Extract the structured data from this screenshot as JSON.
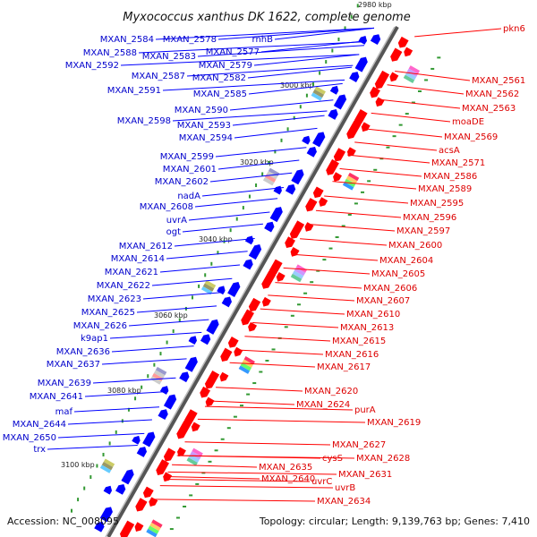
{
  "title": "Myxococcus xanthus DK 1622, complete genome",
  "footer": {
    "accession": "Accession: NC_008095",
    "summary": "Topology: circular; Length: 9,139,763 bp; Genes: 7,410"
  },
  "ticks": [
    "2980 kbp",
    "3000 kbp",
    "3020 kbp",
    "3040 kbp",
    "3060 kbp",
    "3080 kbp",
    "3100 kbp"
  ],
  "left_genes": [
    "MXAN_2584",
    "MXAN_2578",
    "rnhB",
    "MXAN_2588",
    "MXAN_2583",
    "MXAN_2577",
    "MXAN_2592",
    "MXAN_2579",
    "MXAN_2587",
    "MXAN_2582",
    "MXAN_2591",
    "MXAN_2585",
    "MXAN_2590",
    "MXAN_2598",
    "MXAN_2593",
    "MXAN_2594",
    "MXAN_2599",
    "MXAN_2601",
    "MXAN_2602",
    "nadA",
    "MXAN_2608",
    "uvrA",
    "ogt",
    "MXAN_2612",
    "MXAN_2614",
    "MXAN_2621",
    "MXAN_2622",
    "MXAN_2623",
    "MXAN_2625",
    "MXAN_2626",
    "k9ap1",
    "MXAN_2636",
    "MXAN_2637",
    "MXAN_2639",
    "MXAN_2641",
    "maf",
    "MXAN_2644",
    "MXAN_2650",
    "trx"
  ],
  "right_genes": [
    "pkn6",
    "MXAN_2561",
    "MXAN_2562",
    "MXAN_2563",
    "moaDE",
    "MXAN_2569",
    "acsA",
    "MXAN_2571",
    "MXAN_2586",
    "MXAN_2589",
    "MXAN_2595",
    "MXAN_2596",
    "MXAN_2597",
    "MXAN_2600",
    "MXAN_2604",
    "MXAN_2605",
    "MXAN_2606",
    "MXAN_2607",
    "MXAN_2610",
    "MXAN_2613",
    "MXAN_2615",
    "MXAN_2616",
    "MXAN_2617",
    "MXAN_2620",
    "MXAN_2624",
    "purA",
    "MXAN_2619",
    "MXAN_2627",
    "cysS",
    "MXAN_2628",
    "MXAN_2631",
    "MXAN_2635",
    "uvrC",
    "uvrB",
    "MXAN_2640",
    "MXAN_2634"
  ],
  "colors": {
    "forward": "#ff0000",
    "reverse": "#0000ff",
    "backbone": "#888888",
    "gc": "#339933"
  }
}
